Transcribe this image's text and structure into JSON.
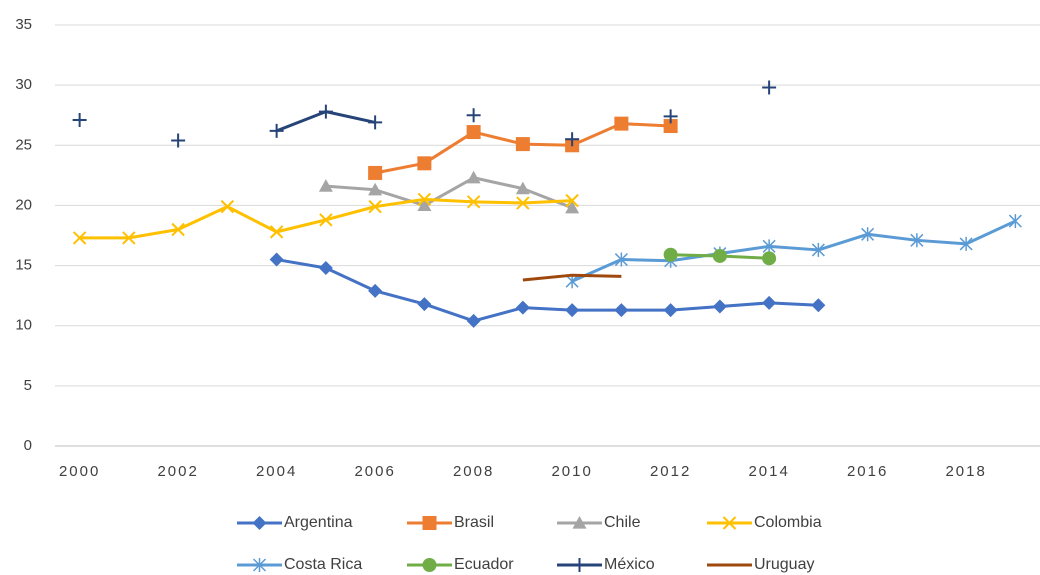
{
  "chart_data": {
    "type": "line",
    "x": [
      2000,
      2001,
      2002,
      2003,
      2004,
      2005,
      2006,
      2007,
      2008,
      2009,
      2010,
      2011,
      2012,
      2013,
      2014,
      2015,
      2016,
      2017,
      2018,
      2019
    ],
    "xlim": [
      1999.5,
      2019.5
    ],
    "xticks": [
      2000,
      2002,
      2004,
      2006,
      2008,
      2010,
      2012,
      2014,
      2016,
      2018
    ],
    "ylim": [
      0,
      35
    ],
    "yticks": [
      0,
      5,
      10,
      15,
      20,
      25,
      30,
      35
    ],
    "grid": true,
    "legend": "bottom",
    "series": [
      {
        "name": "Argentina",
        "color": "#4472c4",
        "marker": "diamond",
        "values": [
          null,
          null,
          null,
          null,
          15.5,
          14.8,
          12.9,
          11.8,
          10.4,
          11.5,
          11.3,
          11.3,
          11.3,
          11.6,
          11.9,
          11.7,
          null,
          null,
          null,
          null
        ]
      },
      {
        "name": "Brasil",
        "color": "#ed7d31",
        "marker": "square",
        "values": [
          null,
          null,
          null,
          null,
          null,
          null,
          22.7,
          23.5,
          26.1,
          25.1,
          25.0,
          26.8,
          26.6,
          null,
          null,
          null,
          null,
          null,
          null,
          null
        ]
      },
      {
        "name": "Chile",
        "color": "#a5a5a5",
        "marker": "triangle",
        "values": [
          null,
          null,
          null,
          null,
          null,
          21.6,
          21.3,
          20.0,
          22.3,
          21.4,
          19.8,
          null,
          null,
          null,
          null,
          null,
          null,
          null,
          null,
          null
        ]
      },
      {
        "name": "Colombia",
        "color": "#ffc000",
        "marker": "x",
        "values": [
          17.3,
          17.3,
          18.0,
          19.9,
          17.8,
          18.8,
          19.9,
          20.5,
          20.3,
          20.2,
          20.4,
          null,
          null,
          null,
          null,
          null,
          null,
          null,
          null,
          null
        ]
      },
      {
        "name": "Costa Rica",
        "color": "#5b9bd5",
        "marker": "star",
        "values": [
          null,
          null,
          null,
          null,
          null,
          null,
          null,
          null,
          null,
          null,
          13.7,
          15.5,
          15.4,
          16.0,
          16.6,
          16.3,
          17.6,
          17.1,
          16.8,
          18.7
        ]
      },
      {
        "name": "Ecuador",
        "color": "#70ad47",
        "marker": "circle",
        "values": [
          null,
          null,
          null,
          null,
          null,
          null,
          null,
          null,
          null,
          null,
          null,
          null,
          15.9,
          15.8,
          15.6,
          null,
          null,
          null,
          null,
          null
        ]
      },
      {
        "name": "México",
        "color": "#264478",
        "marker": "plus",
        "values": [
          27.1,
          null,
          25.4,
          null,
          26.2,
          27.8,
          26.9,
          null,
          27.5,
          null,
          25.5,
          null,
          27.4,
          null,
          29.8,
          null,
          null,
          null,
          null,
          null
        ]
      },
      {
        "name": "Uruguay",
        "color": "#9e480e",
        "marker": "none",
        "values": [
          null,
          null,
          null,
          null,
          null,
          null,
          null,
          null,
          null,
          13.8,
          14.2,
          14.1,
          null,
          null,
          null,
          null,
          null,
          null,
          null,
          null
        ]
      }
    ]
  }
}
